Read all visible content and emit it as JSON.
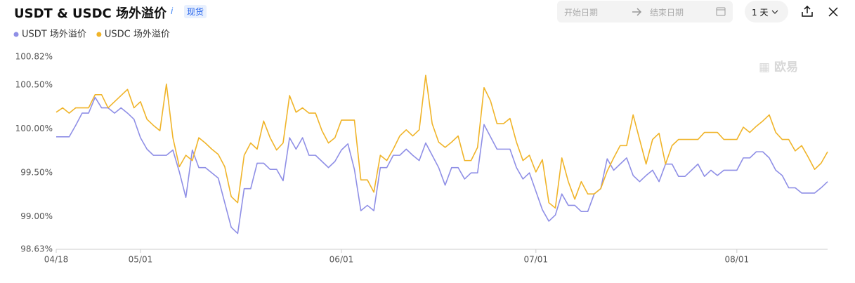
{
  "ui": {
    "title": "USDT & USDC 场外溢价",
    "info": "i",
    "badge": "现货",
    "start_date": "开始日期",
    "end_date": "结束日期",
    "interval": "1 天",
    "watermark": "欧易"
  },
  "chart_data": {
    "type": "line",
    "categories": [
      "04/18",
      null,
      null,
      null,
      null,
      null,
      null,
      null,
      null,
      null,
      null,
      null,
      null,
      "05/01",
      null,
      null,
      null,
      null,
      null,
      null,
      null,
      null,
      null,
      null,
      null,
      null,
      null,
      null,
      null,
      null,
      null,
      null,
      null,
      null,
      null,
      null,
      null,
      null,
      null,
      null,
      null,
      null,
      null,
      null,
      "06/01",
      null,
      null,
      null,
      null,
      null,
      null,
      null,
      null,
      null,
      null,
      null,
      null,
      null,
      null,
      null,
      null,
      null,
      null,
      null,
      null,
      null,
      null,
      null,
      null,
      null,
      null,
      null,
      null,
      null,
      "07/01",
      null,
      null,
      null,
      null,
      null,
      null,
      null,
      null,
      null,
      null,
      null,
      null,
      null,
      null,
      null,
      null,
      null,
      null,
      null,
      null,
      null,
      null,
      null,
      null,
      null,
      null,
      null,
      null,
      null,
      null,
      "08/01",
      null,
      null,
      null,
      null,
      null,
      null,
      null,
      null,
      null,
      null,
      null,
      null,
      null,
      null
    ],
    "series": [
      {
        "name": "USDT 场外溢价",
        "color": "#8f8fe6",
        "values": [
          99.91,
          99.91,
          99.91,
          100.04,
          100.18,
          100.18,
          100.36,
          100.24,
          100.24,
          100.18,
          100.24,
          100.18,
          100.11,
          99.9,
          99.77,
          99.7,
          99.7,
          99.7,
          99.76,
          99.51,
          99.22,
          99.76,
          99.56,
          99.56,
          99.5,
          99.44,
          99.16,
          98.88,
          98.81,
          99.32,
          99.32,
          99.61,
          99.61,
          99.54,
          99.54,
          99.41,
          99.9,
          99.77,
          99.9,
          99.7,
          99.7,
          99.63,
          99.56,
          99.63,
          99.76,
          99.83,
          99.54,
          99.07,
          99.13,
          99.07,
          99.56,
          99.56,
          99.7,
          99.7,
          99.77,
          99.7,
          99.64,
          99.84,
          99.7,
          99.56,
          99.36,
          99.56,
          99.56,
          99.43,
          99.5,
          99.5,
          100.05,
          99.91,
          99.77,
          99.77,
          99.77,
          99.56,
          99.43,
          99.5,
          99.29,
          99.08,
          98.95,
          99.02,
          99.26,
          99.13,
          99.13,
          99.06,
          99.06,
          99.26,
          99.32,
          99.66,
          99.53,
          99.6,
          99.67,
          99.47,
          99.4,
          99.47,
          99.53,
          99.4,
          99.6,
          99.6,
          99.46,
          99.46,
          99.53,
          99.6,
          99.46,
          99.53,
          99.47,
          99.53,
          99.53,
          99.53,
          99.67,
          99.67,
          99.74,
          99.74,
          99.67,
          99.53,
          99.47,
          99.33,
          99.33,
          99.27,
          99.27,
          99.27,
          99.33,
          99.4
        ]
      },
      {
        "name": "USDC 场外溢价",
        "color": "#f0b429",
        "values": [
          100.19,
          100.24,
          100.18,
          100.24,
          100.24,
          100.24,
          100.39,
          100.39,
          100.24,
          100.31,
          100.38,
          100.45,
          100.24,
          100.31,
          100.11,
          100.04,
          99.98,
          100.51,
          99.9,
          99.57,
          99.7,
          99.64,
          99.9,
          99.84,
          99.77,
          99.71,
          99.57,
          99.23,
          99.16,
          99.7,
          99.84,
          99.77,
          100.09,
          99.9,
          99.76,
          99.84,
          100.38,
          100.19,
          100.24,
          100.18,
          100.18,
          99.98,
          99.84,
          99.9,
          100.1,
          100.1,
          100.1,
          99.42,
          99.42,
          99.28,
          99.7,
          99.64,
          99.77,
          99.92,
          99.99,
          99.92,
          99.99,
          100.61,
          100.06,
          99.85,
          99.79,
          99.85,
          99.92,
          99.64,
          99.64,
          99.79,
          100.47,
          100.32,
          100.06,
          100.06,
          100.12,
          99.85,
          99.64,
          99.7,
          99.51,
          99.65,
          99.16,
          99.1,
          99.67,
          99.4,
          99.2,
          99.4,
          99.26,
          99.26,
          99.32,
          99.52,
          99.67,
          99.81,
          99.81,
          100.16,
          99.88,
          99.6,
          99.88,
          99.95,
          99.6,
          99.81,
          99.88,
          99.88,
          99.88,
          99.88,
          99.96,
          99.96,
          99.96,
          99.88,
          99.88,
          99.88,
          100.02,
          99.96,
          100.03,
          100.09,
          100.16,
          99.96,
          99.88,
          99.88,
          99.75,
          99.81,
          99.68,
          99.54,
          99.61,
          99.74
        ]
      }
    ],
    "ylim": [
      98.63,
      100.82
    ],
    "yticks": [
      {
        "value": 98.63,
        "label": "98.63%"
      },
      {
        "value": 99.0,
        "label": "99.00%"
      },
      {
        "value": 99.5,
        "label": "99.50%"
      },
      {
        "value": 100.0,
        "label": "100.00%"
      },
      {
        "value": 100.5,
        "label": "100.50%"
      },
      {
        "value": 100.82,
        "label": "100.82%"
      }
    ],
    "grid": false
  }
}
